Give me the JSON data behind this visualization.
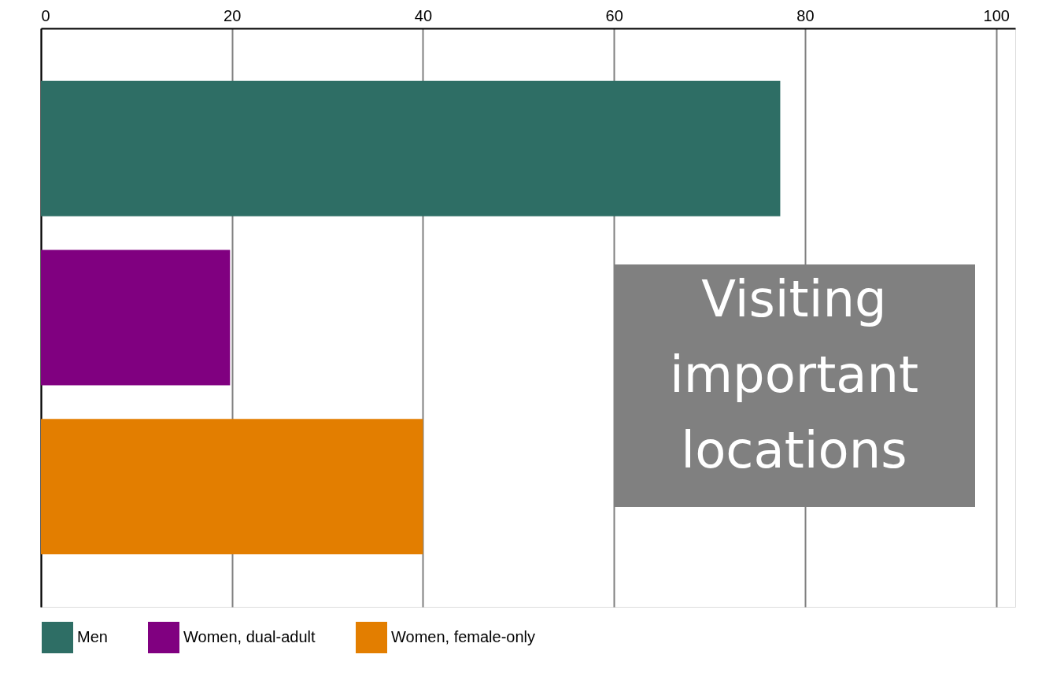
{
  "chart_data": {
    "type": "bar",
    "orientation": "horizontal",
    "categories": [
      null
    ],
    "series": [
      {
        "name": "Men",
        "color": "#2e6e65",
        "values": [
          77.4
        ]
      },
      {
        "name": "Women, dual-adult",
        "color": "#800080",
        "values": [
          19.8
        ]
      },
      {
        "name": "Women, female-only",
        "color": "#e37e00",
        "values": [
          40
        ]
      }
    ],
    "xlim": [
      0,
      102
    ],
    "xticks": [
      0,
      20,
      40,
      60,
      80,
      100
    ],
    "grid": "x",
    "legend": "bottom",
    "annotations": [
      "Visiting important locations"
    ]
  }
}
